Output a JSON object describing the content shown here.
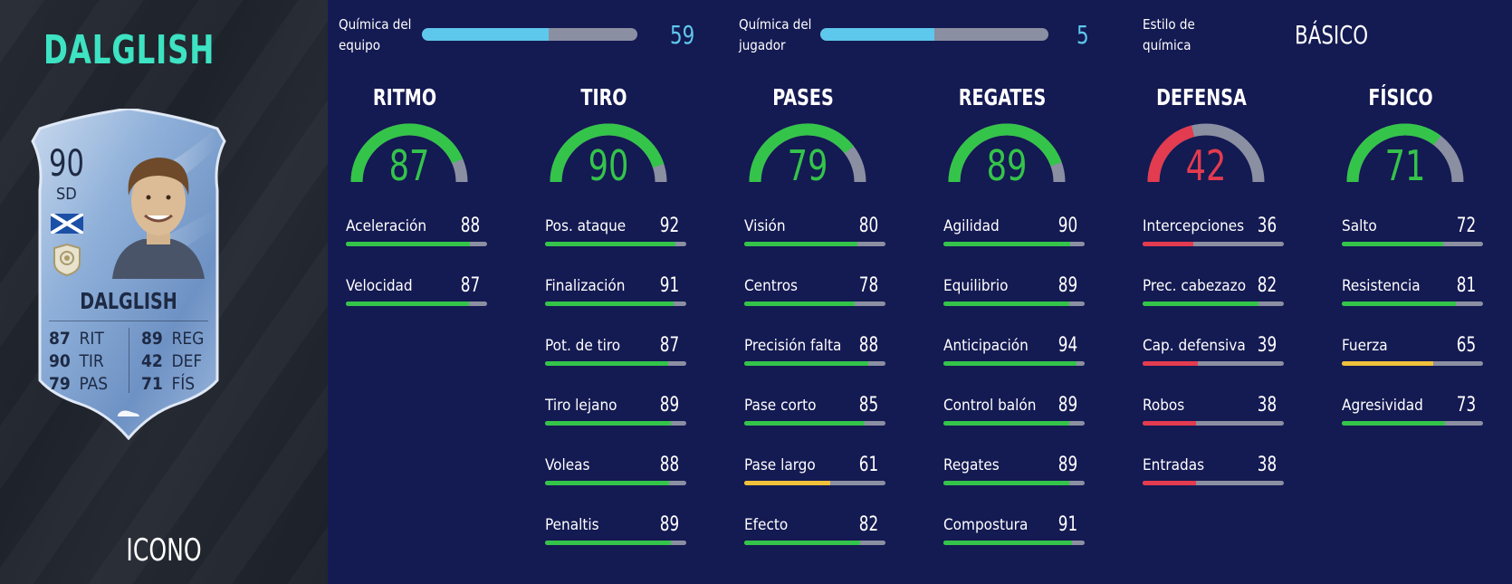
{
  "player": {
    "heading": "DALGLISH",
    "card_type": "ICONO",
    "card": {
      "rating": "90",
      "position": "SD",
      "name": "DALGLISH",
      "left_stats": [
        {
          "value": "87",
          "label": "RIT"
        },
        {
          "value": "90",
          "label": "TIR"
        },
        {
          "value": "79",
          "label": "PAS"
        }
      ],
      "right_stats": [
        {
          "value": "89",
          "label": "REG"
        },
        {
          "value": "42",
          "label": "DEF"
        },
        {
          "value": "71",
          "label": "FÍS"
        }
      ]
    }
  },
  "chemistry": {
    "team_label": "Química del\nequipo",
    "team_value": "59",
    "team_fraction": 0.59,
    "player_label": "Química del\njugador",
    "player_value": "5",
    "player_fraction": 0.5,
    "style_label": "Estilo de\nquímica",
    "style_value": "BÁSICO"
  },
  "colors": {
    "high": "#34c44a",
    "mid": "#f0c13a",
    "low": "#e33b4f",
    "chem": "#5ec8ec",
    "track": "#8b8fa2",
    "heading": "#3de3c2"
  },
  "categories": [
    {
      "title": "RITMO",
      "value": "87",
      "level": "high",
      "attributes": [
        {
          "label": "Aceleración",
          "value": "88",
          "level": "high"
        },
        {
          "label": "Velocidad",
          "value": "87",
          "level": "high"
        }
      ]
    },
    {
      "title": "TIRO",
      "value": "90",
      "level": "high",
      "attributes": [
        {
          "label": "Pos. ataque",
          "value": "92",
          "level": "high"
        },
        {
          "label": "Finalización",
          "value": "91",
          "level": "high"
        },
        {
          "label": "Pot. de tiro",
          "value": "87",
          "level": "high"
        },
        {
          "label": "Tiro lejano",
          "value": "89",
          "level": "high"
        },
        {
          "label": "Voleas",
          "value": "88",
          "level": "high"
        },
        {
          "label": "Penaltis",
          "value": "89",
          "level": "high"
        }
      ]
    },
    {
      "title": "PASES",
      "value": "79",
      "level": "high",
      "attributes": [
        {
          "label": "Visión",
          "value": "80",
          "level": "high"
        },
        {
          "label": "Centros",
          "value": "78",
          "level": "high"
        },
        {
          "label": "Precisión falta",
          "value": "88",
          "level": "high"
        },
        {
          "label": "Pase corto",
          "value": "85",
          "level": "high"
        },
        {
          "label": "Pase largo",
          "value": "61",
          "level": "mid"
        },
        {
          "label": "Efecto",
          "value": "82",
          "level": "high"
        }
      ]
    },
    {
      "title": "REGATES",
      "value": "89",
      "level": "high",
      "attributes": [
        {
          "label": "Agilidad",
          "value": "90",
          "level": "high"
        },
        {
          "label": "Equilibrio",
          "value": "89",
          "level": "high"
        },
        {
          "label": "Anticipación",
          "value": "94",
          "level": "high"
        },
        {
          "label": "Control balón",
          "value": "89",
          "level": "high"
        },
        {
          "label": "Regates",
          "value": "89",
          "level": "high"
        },
        {
          "label": "Compostura",
          "value": "91",
          "level": "high"
        }
      ]
    },
    {
      "title": "DEFENSA",
      "value": "42",
      "level": "low",
      "attributes": [
        {
          "label": "Intercepciones",
          "value": "36",
          "level": "low"
        },
        {
          "label": "Prec. cabezazo",
          "value": "82",
          "level": "high"
        },
        {
          "label": "Cap. defensiva",
          "value": "39",
          "level": "low"
        },
        {
          "label": "Robos",
          "value": "38",
          "level": "low"
        },
        {
          "label": "Entradas",
          "value": "38",
          "level": "low"
        }
      ]
    },
    {
      "title": "FÍSICO",
      "value": "71",
      "level": "high",
      "attributes": [
        {
          "label": "Salto",
          "value": "72",
          "level": "high"
        },
        {
          "label": "Resistencia",
          "value": "81",
          "level": "high"
        },
        {
          "label": "Fuerza",
          "value": "65",
          "level": "mid"
        },
        {
          "label": "Agresividad",
          "value": "73",
          "level": "high"
        }
      ]
    }
  ]
}
